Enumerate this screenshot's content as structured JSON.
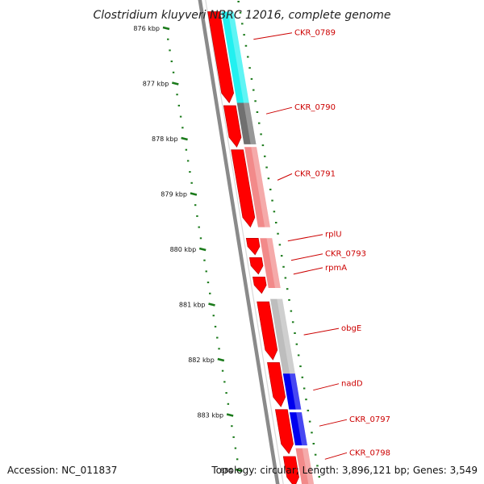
{
  "title": "Clostridium kluyveri NBRC 12016, complete genome",
  "footer": {
    "accession": "Accession: NC_011837",
    "summary": "Topology: circular; Length: 3,896,121 bp; Genes: 3,549"
  },
  "colors": {
    "forward_strand": "#ff0000",
    "reverse_red": "#f28a8a",
    "reverse_cyan": "#22f0f0",
    "reverse_darkgrey": "#707070",
    "reverse_lightgrey": "#bdbdbd",
    "reverse_blue": "#0000ee",
    "backbone": "#8a8a8a",
    "tick": "#1a7a1a",
    "label": "#cc0000"
  },
  "axis": {
    "ticks": [
      {
        "label": "876 kbp",
        "kbp": 876
      },
      {
        "label": "877 kbp",
        "kbp": 877
      },
      {
        "label": "878 kbp",
        "kbp": 878
      },
      {
        "label": "879 kbp",
        "kbp": 879
      },
      {
        "label": "880 kbp",
        "kbp": 880
      },
      {
        "label": "881 kbp",
        "kbp": 881
      },
      {
        "label": "882 kbp",
        "kbp": 882
      },
      {
        "label": "883 kbp",
        "kbp": 883
      },
      {
        "label": "884",
        "kbp": 884
      }
    ]
  },
  "genes": {
    "forward": [
      {
        "start": 875.7,
        "end": 877.35
      },
      {
        "start": 877.4,
        "end": 878.15
      },
      {
        "start": 878.2,
        "end": 879.6
      },
      {
        "start": 879.8,
        "end": 880.1
      },
      {
        "start": 880.15,
        "end": 880.45
      },
      {
        "start": 880.5,
        "end": 880.8
      },
      {
        "start": 880.95,
        "end": 882.0
      },
      {
        "start": 882.05,
        "end": 882.85
      },
      {
        "start": 882.9,
        "end": 883.7
      },
      {
        "start": 883.75,
        "end": 884.3
      }
    ],
    "reverse": [
      {
        "start": 875.7,
        "end": 877.35,
        "color": "#22f0f0"
      },
      {
        "start": 877.35,
        "end": 878.1,
        "color": "#707070"
      },
      {
        "start": 878.15,
        "end": 879.6,
        "color": "#f28a8a"
      },
      {
        "start": 879.8,
        "end": 880.7,
        "color": "#f28a8a"
      },
      {
        "start": 880.9,
        "end": 882.25,
        "color": "#bdbdbd"
      },
      {
        "start": 882.25,
        "end": 882.9,
        "color": "#0000ee"
      },
      {
        "start": 882.95,
        "end": 883.55,
        "color": "#0000ee"
      },
      {
        "start": 883.6,
        "end": 884.3,
        "color": "#f28a8a"
      }
    ],
    "labels": [
      {
        "name": "CKR_0789",
        "kbp": 876.2
      },
      {
        "name": "CKR_0790",
        "kbp": 877.55
      },
      {
        "name": "CKR_0791",
        "kbp": 878.75
      },
      {
        "name": "rplU",
        "kbp": 879.85
      },
      {
        "name": "CKR_0793",
        "kbp": 880.2
      },
      {
        "name": "rpmA",
        "kbp": 880.45
      },
      {
        "name": "obgE",
        "kbp": 881.55
      },
      {
        "name": "nadD",
        "kbp": 882.55
      },
      {
        "name": "CKR_0797",
        "kbp": 883.2
      },
      {
        "name": "CKR_0798",
        "kbp": 883.8
      }
    ]
  }
}
